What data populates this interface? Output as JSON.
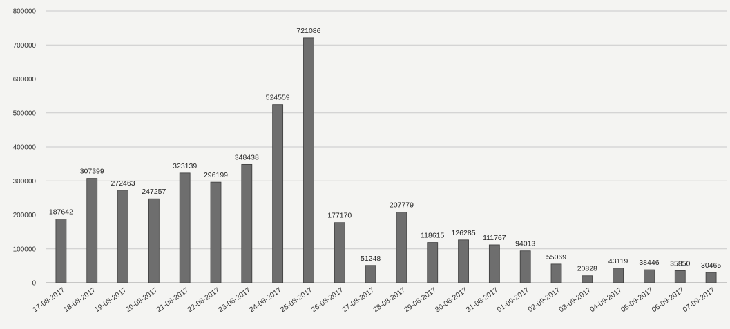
{
  "chart_data": {
    "type": "bar",
    "title": "",
    "xlabel": "",
    "ylabel": "",
    "ylim": [
      0,
      800000
    ],
    "yticks": [
      0,
      100000,
      200000,
      300000,
      400000,
      500000,
      600000,
      700000,
      800000
    ],
    "ytick_labels": [
      "0",
      "100000",
      "200000",
      "300000",
      "400000",
      "500000",
      "600000",
      "700000",
      "800000"
    ],
    "grid": true,
    "legend": "none",
    "bar_color": "#6e6e6e",
    "categories": [
      "17-08-2017",
      "18-08-2017",
      "19-08-2017",
      "20-08-2017",
      "21-08-2017",
      "22-08-2017",
      "23-08-2017",
      "24-08-2017",
      "25-08-2017",
      "26-08-2017",
      "27-08-2017",
      "28-08-2017",
      "29-08-2017",
      "30-08-2017",
      "31-08-2017",
      "01-09-2017",
      "02-09-2017",
      "03-09-2017",
      "04-09-2017",
      "05-09-2017",
      "06-09-2017",
      "07-09-2017"
    ],
    "values": [
      187642,
      307399,
      272463,
      247257,
      323139,
      296199,
      348438,
      524559,
      721086,
      177170,
      51248,
      207779,
      118615,
      126285,
      111767,
      94013,
      55069,
      20828,
      43119,
      38446,
      35850,
      30465
    ]
  }
}
